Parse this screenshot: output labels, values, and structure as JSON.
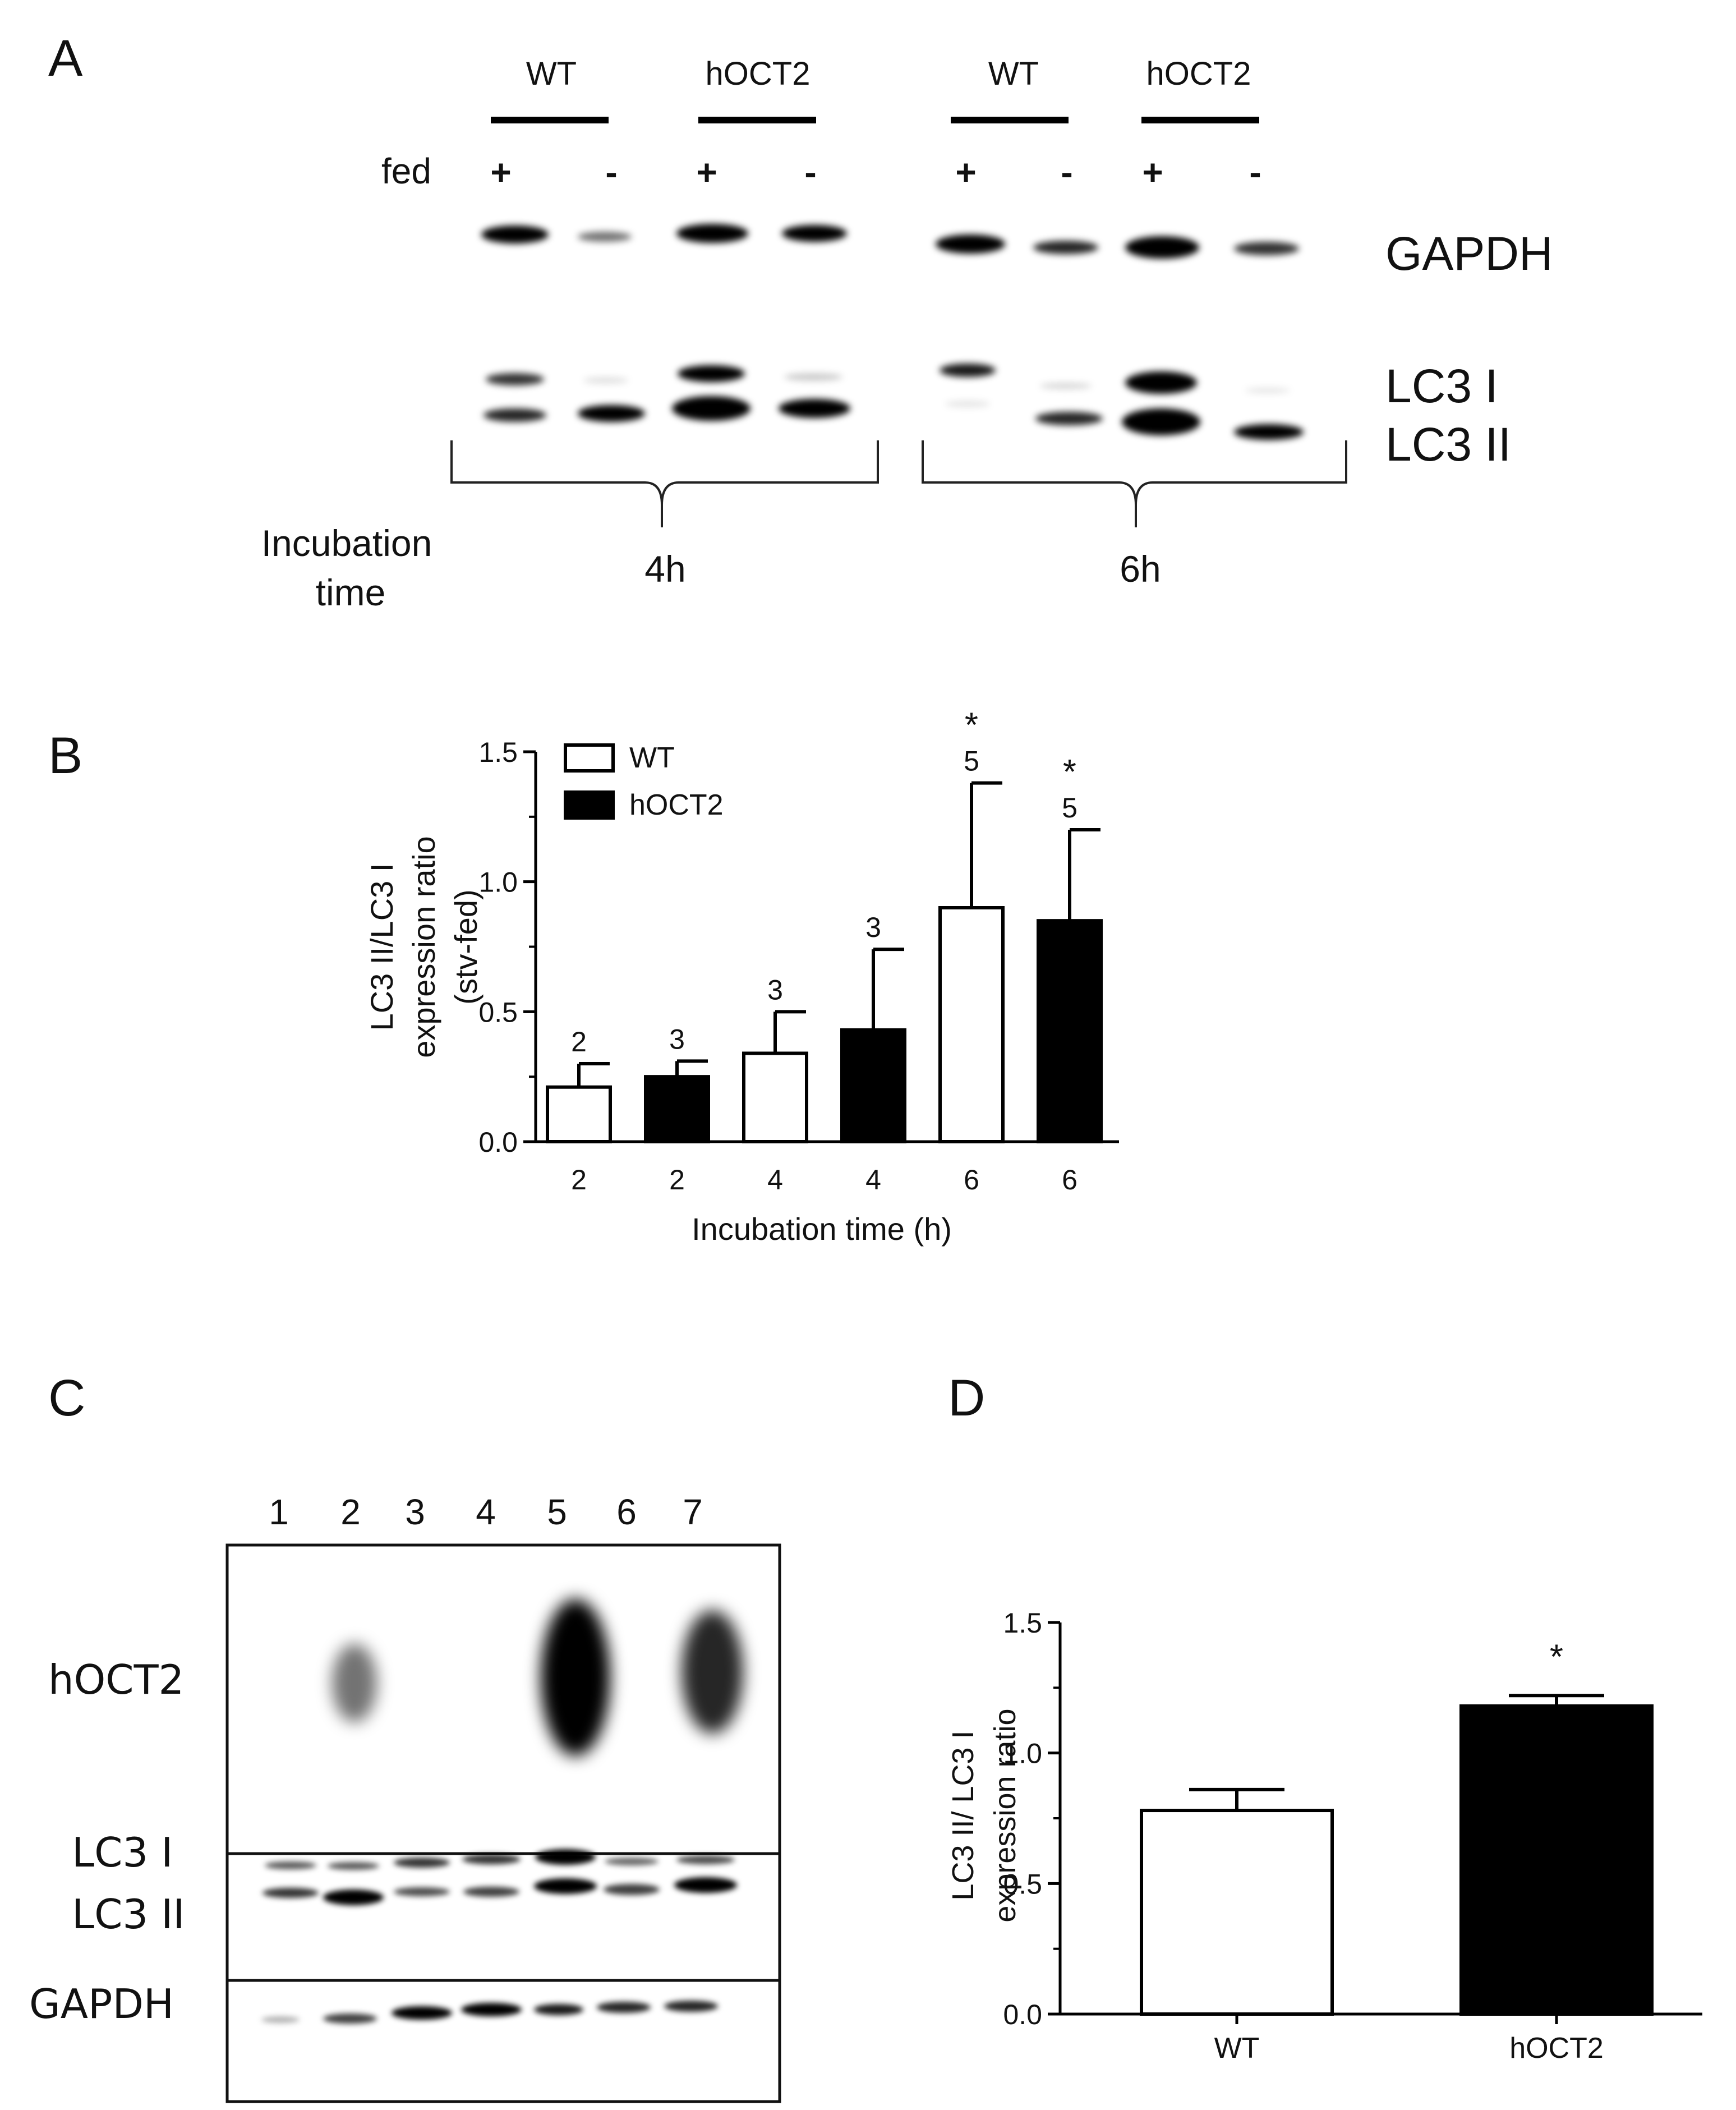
{
  "panels": {
    "a": "A",
    "b": "B",
    "c": "C",
    "d": "D"
  },
  "blot_a": {
    "group_labels": [
      "WT",
      "hOCT2",
      "WT",
      "hOCT2"
    ],
    "fed_label": "fed",
    "fed_signs": [
      "+",
      "-",
      "+",
      "-",
      "+",
      "-",
      "+",
      "-"
    ],
    "band_labels": [
      "GAPDH",
      "LC3 I",
      "LC3 II"
    ],
    "incubation_label_line1": "Incubation",
    "incubation_label_line2": "time",
    "time_labels": [
      "4h",
      "6h"
    ]
  },
  "blot_c": {
    "lanes": [
      "1",
      "2",
      "3",
      "4",
      "5",
      "6",
      "7"
    ],
    "row_labels": [
      "hOCT2",
      "LC3 I",
      "LC3 II",
      "GAPDH"
    ]
  },
  "chart_data": [
    {
      "panel": "B",
      "type": "bar",
      "categories": [
        "2",
        "2",
        "4",
        "4",
        "6",
        "6"
      ],
      "groups": [
        "WT",
        "hOCT2",
        "WT",
        "hOCT2",
        "WT",
        "hOCT2"
      ],
      "values": [
        0.21,
        0.25,
        0.34,
        0.43,
        0.9,
        0.85
      ],
      "errors": [
        0.09,
        0.06,
        0.16,
        0.31,
        0.48,
        0.35
      ],
      "n_labels": [
        "2",
        "3",
        "3",
        "3",
        "5",
        "5"
      ],
      "significance": [
        "",
        "",
        "",
        "",
        "*",
        "*"
      ],
      "series": [
        {
          "name": "WT",
          "color": "#ffffff"
        },
        {
          "name": "hOCT2",
          "color": "#000000"
        }
      ],
      "ylabel_line1": "LC3 II/LC3 I",
      "ylabel_line2": "expression ratio",
      "ylabel_line3": "(stv-fed)",
      "xlabel": "Incubation time (h)",
      "ylim": [
        0,
        1.5
      ],
      "yticks": [
        "0.0",
        "0.5",
        "1.0",
        "1.5"
      ],
      "legend": "top-left",
      "grid": false
    },
    {
      "panel": "D",
      "type": "bar",
      "categories": [
        "WT",
        "hOCT2"
      ],
      "values": [
        0.78,
        1.18
      ],
      "errors": [
        0.08,
        0.04
      ],
      "significance": [
        "",
        "*"
      ],
      "colors": [
        "#ffffff",
        "#000000"
      ],
      "ylabel_line1": "LC3 II/ LC3 I",
      "ylabel_line2": "expression ratio",
      "ylim": [
        0,
        1.5
      ],
      "yticks": [
        "0.0",
        "0.5",
        "1.0",
        "1.5"
      ],
      "grid": false
    }
  ]
}
